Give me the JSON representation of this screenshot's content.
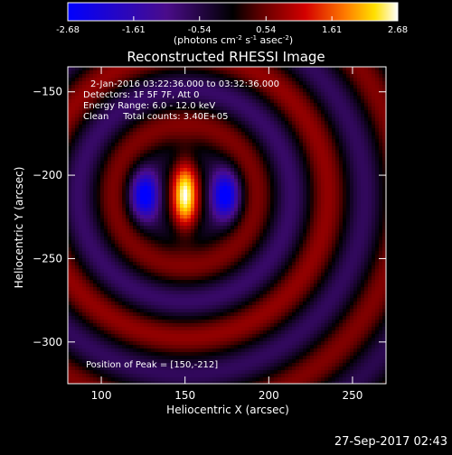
{
  "colorbar": {
    "ticks": [
      {
        "value": -2.68,
        "label": "-2.68"
      },
      {
        "value": -1.61,
        "label": "-1.61"
      },
      {
        "value": -0.54,
        "label": "-0.54"
      },
      {
        "value": 0.54,
        "label": "0.54"
      },
      {
        "value": 1.61,
        "label": "1.61"
      },
      {
        "value": 2.68,
        "label": "2.68"
      }
    ],
    "range": [
      -2.68,
      2.68
    ],
    "unit_main": "(photons cm",
    "unit_exp1": "-2",
    "unit_mid": " s",
    "unit_exp2": "-1",
    "unit_mid2": " asec",
    "unit_exp3": "-2",
    "unit_end": ")"
  },
  "image": {
    "title": "Reconstructed RHESSI Image",
    "info_lines": [
      "2-Jan-2016 03:22:36.000 to 03:32:36.000",
      "Detectors: 1F 5F 7F, Att 0",
      "Energy Range: 6.0 - 12.0 keV",
      "Clean     Total counts: 3.40E+05"
    ],
    "peak_label": "Position of Peak = [150,-212]",
    "xlabel": "Heliocentric X (arcsec)",
    "ylabel": "Heliocentric Y (arcsec)",
    "x_ticks": [
      {
        "value": 100,
        "label": "100"
      },
      {
        "value": 150,
        "label": "150"
      },
      {
        "value": 200,
        "label": "200"
      },
      {
        "value": 250,
        "label": "250"
      }
    ],
    "y_ticks": [
      {
        "value": -150,
        "label": "−150"
      },
      {
        "value": -200,
        "label": "−200"
      },
      {
        "value": -250,
        "label": "−250"
      },
      {
        "value": -300,
        "label": "−300"
      }
    ],
    "xlim": [
      80,
      270
    ],
    "ylim": [
      -325,
      -135
    ],
    "peak": {
      "x": 150,
      "y": -212
    }
  },
  "footer": {
    "timestamp": "27-Sep-2017 02:43"
  }
}
